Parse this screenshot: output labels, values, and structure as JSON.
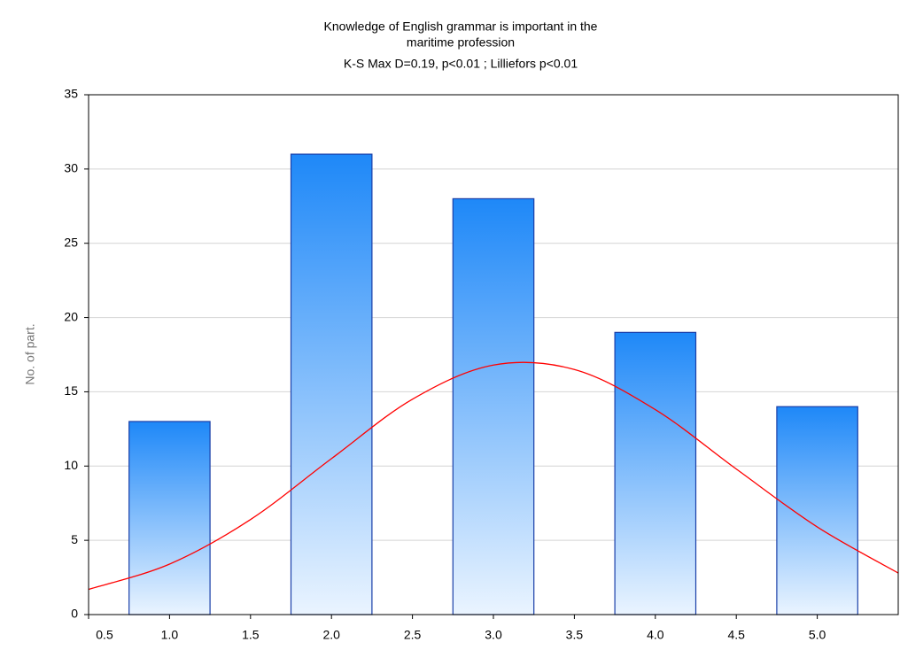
{
  "chart_data": {
    "type": "histogram",
    "title": [
      "Knowledge of English grammar is important in the",
      "maritime profession"
    ],
    "subtitle": "K-S Max D=0.19, p<0.01 ; Lilliefors p<0.01",
    "y_label": "No. of part.",
    "x": [
      1,
      2,
      3,
      4,
      5
    ],
    "values": [
      13,
      31,
      28,
      19,
      14
    ],
    "bar_width": 0.5,
    "color": "#1e88f8",
    "xlim": [
      0.5,
      5.5
    ],
    "ylim": [
      0,
      35
    ],
    "xticks": [
      {
        "value": 0.5,
        "label": "0.5"
      },
      {
        "value": 1,
        "label": "1.0"
      },
      {
        "value": 1.5,
        "label": "1.5"
      },
      {
        "value": 2,
        "label": "2.0"
      },
      {
        "value": 2.5,
        "label": "2.5"
      },
      {
        "value": 3,
        "label": "3.0"
      },
      {
        "value": 3.5,
        "label": "3.5"
      },
      {
        "value": 4,
        "label": "4.0"
      },
      {
        "value": 4.5,
        "label": "4.5"
      },
      {
        "value": 5,
        "label": "5.0"
      }
    ],
    "yticks": [
      0,
      5,
      10,
      15,
      20,
      25,
      30,
      35
    ],
    "grid": true,
    "fit": {
      "color": "#ff0000",
      "x": [
        0.5,
        1,
        1.5,
        2,
        2.5,
        3,
        3.5,
        4,
        4.5,
        5,
        5.5
      ],
      "values": [
        1.7,
        3.4,
        6.4,
        10.5,
        14.5,
        16.8,
        16.5,
        13.8,
        9.8,
        5.9,
        2.8
      ]
    }
  }
}
